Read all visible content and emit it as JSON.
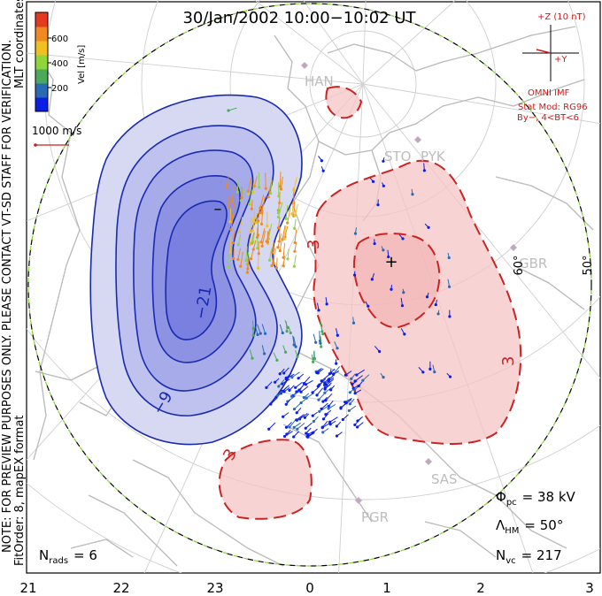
{
  "title": "30/Jan/2002 10:00−10:02 UT",
  "side_note": {
    "line1": "NOTE: FOR PREVIEW PURPOSES ONLY. PLEASE CONTACT VT-SD STAFF FOR VERIFICATION.",
    "line2": "FitOrder: 8, mapEX format",
    "coords": "MLT coordinates"
  },
  "colorbar": {
    "label": "Vel [m/s]",
    "ticks": [
      "600",
      "400",
      "200"
    ],
    "colors": [
      "#0a1ee6",
      "#2a6ab4",
      "#4aaa5a",
      "#8ed63a",
      "#f0c020",
      "#f08a20",
      "#e63a1e"
    ]
  },
  "vector_scale": {
    "label": "1000 m/s",
    "color": "#c81e1e"
  },
  "imf": {
    "axis_z": "+Z (10 nT)",
    "axis_y": "+Y",
    "source": "OMNI IMF",
    "model1": "Stat Mod: RG96",
    "model2": "By−, 4<BT<6"
  },
  "stations": [
    "HAN",
    "STO",
    "PYK",
    "GBR",
    "SAS",
    "PGR"
  ],
  "lat_labels": [
    "60°",
    "50°"
  ],
  "contour_labels": {
    "neg1": "−9",
    "neg2": "−21",
    "pos1": "3",
    "pos2": "3",
    "pos3": "3"
  },
  "stats": {
    "phi_symbol": "Φ",
    "phi_sub": "pc",
    "phi_value": "= 38 kV",
    "lambda_symbol": "Λ",
    "lambda_sub": "HM",
    "lambda_value": "= 50°",
    "nvc_symbol": "N",
    "nvc_sub": "vc",
    "nvc_value": "= 217",
    "nrads_symbol": "N",
    "nrads_sub": "rads",
    "nrads_value": "= 6"
  },
  "mlt_axis": [
    "21",
    "22",
    "23",
    "0",
    "1",
    "2",
    "3"
  ],
  "colors": {
    "negative_fill": "#4444dd",
    "negative_line": "#1a2ab0",
    "positive_fill": "#f2a6a6",
    "positive_line": "#cc2222",
    "boundary_green": "#8ad03a",
    "coastline": "#b9b9b9"
  }
}
